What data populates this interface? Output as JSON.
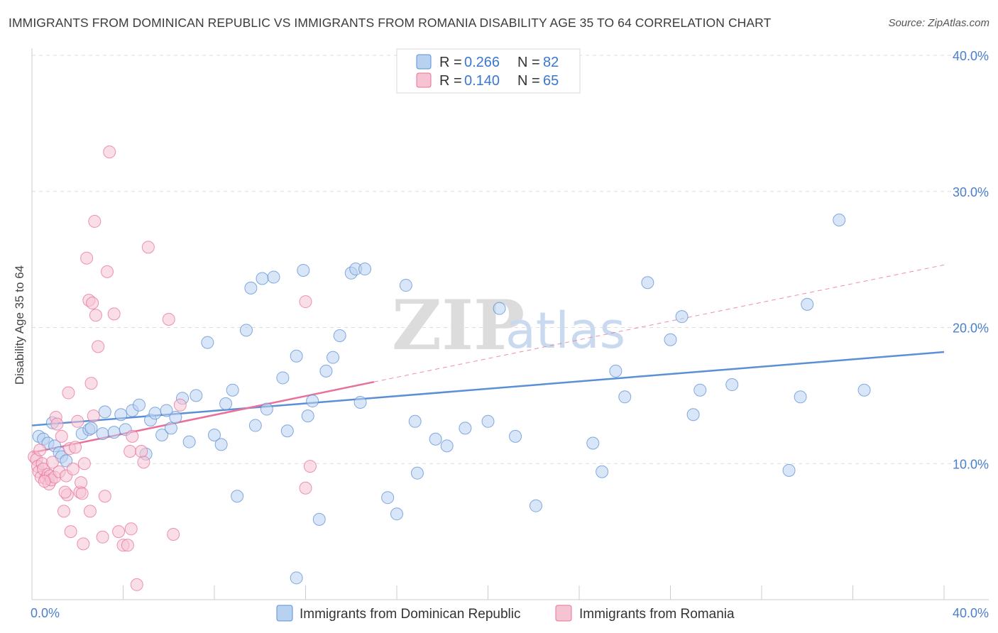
{
  "title": "IMMIGRANTS FROM DOMINICAN REPUBLIC VS IMMIGRANTS FROM ROMANIA DISABILITY AGE 35 TO 64 CORRELATION CHART",
  "source": "Source: ZipAtlas.com",
  "watermark": {
    "zip": "ZIP",
    "atlas": "atlas"
  },
  "colors": {
    "blue": "#5b8fd6",
    "blue_fill": "#b9d1f1",
    "pink": "#e8709a",
    "pink_fill": "#f6c3d3",
    "grid": "#dddddd",
    "tick_label": "#4a7fd0"
  },
  "legend": {
    "rows": [
      {
        "r_label": "R = ",
        "r_value": "0.266",
        "n_label": "N = ",
        "n_value": "82"
      },
      {
        "r_label": "R = ",
        "r_value": "0.140",
        "n_label": "N = ",
        "n_value": "65"
      }
    ]
  },
  "chart_data": {
    "type": "scatter",
    "ylabel": "Disability Age 35 to 64",
    "xlim": [
      0,
      40
    ],
    "ylim": [
      0,
      40
    ],
    "x_tick_labels": [
      "0.0%",
      "40.0%"
    ],
    "y_ticks": [
      10,
      20,
      30,
      40
    ],
    "y_tick_labels": [
      "10.0%",
      "20.0%",
      "30.0%",
      "40.0%"
    ],
    "grid": "horizontal dashed",
    "legend_position": "bottom",
    "series": [
      {
        "name": "Immigrants from Dominican Republic",
        "color": "#5b8fd6",
        "trend": {
          "x1": 0,
          "y1": 12.8,
          "x2": 40,
          "y2": 18.2
        },
        "points": [
          [
            0.3,
            12.0
          ],
          [
            0.5,
            11.8
          ],
          [
            0.7,
            11.5
          ],
          [
            0.9,
            13.0
          ],
          [
            1.0,
            11.3
          ],
          [
            1.2,
            10.8
          ],
          [
            1.3,
            10.5
          ],
          [
            1.5,
            10.2
          ],
          [
            2.2,
            12.2
          ],
          [
            2.5,
            12.5
          ],
          [
            2.6,
            12.6
          ],
          [
            3.1,
            12.2
          ],
          [
            3.2,
            13.8
          ],
          [
            3.6,
            12.3
          ],
          [
            3.9,
            13.6
          ],
          [
            4.1,
            12.5
          ],
          [
            4.4,
            13.9
          ],
          [
            4.7,
            14.3
          ],
          [
            5.0,
            10.7
          ],
          [
            5.2,
            13.2
          ],
          [
            5.4,
            13.7
          ],
          [
            5.7,
            12.1
          ],
          [
            5.9,
            13.9
          ],
          [
            6.1,
            12.6
          ],
          [
            6.3,
            13.4
          ],
          [
            6.6,
            14.8
          ],
          [
            6.9,
            11.6
          ],
          [
            7.2,
            15.0
          ],
          [
            7.7,
            18.9
          ],
          [
            8.0,
            12.1
          ],
          [
            8.3,
            11.4
          ],
          [
            8.5,
            14.4
          ],
          [
            8.8,
            15.4
          ],
          [
            9.0,
            7.6
          ],
          [
            9.4,
            19.8
          ],
          [
            9.6,
            22.9
          ],
          [
            9.8,
            12.8
          ],
          [
            10.1,
            23.6
          ],
          [
            10.3,
            14.0
          ],
          [
            10.6,
            23.7
          ],
          [
            11.0,
            16.3
          ],
          [
            11.2,
            12.4
          ],
          [
            11.6,
            17.9
          ],
          [
            11.9,
            24.2
          ],
          [
            12.1,
            13.5
          ],
          [
            12.3,
            14.6
          ],
          [
            12.6,
            5.9
          ],
          [
            12.9,
            16.8
          ],
          [
            13.2,
            17.8
          ],
          [
            13.5,
            19.4
          ],
          [
            14.0,
            24.0
          ],
          [
            14.2,
            24.3
          ],
          [
            14.4,
            14.5
          ],
          [
            14.6,
            24.3
          ],
          [
            15.6,
            7.5
          ],
          [
            16.0,
            6.3
          ],
          [
            16.4,
            23.1
          ],
          [
            16.8,
            13.1
          ],
          [
            16.9,
            9.3
          ],
          [
            17.7,
            11.8
          ],
          [
            18.2,
            11.3
          ],
          [
            19.0,
            12.6
          ],
          [
            20.0,
            13.1
          ],
          [
            20.5,
            21.4
          ],
          [
            21.2,
            12.0
          ],
          [
            22.1,
            6.9
          ],
          [
            24.6,
            11.5
          ],
          [
            25.0,
            9.4
          ],
          [
            25.6,
            16.8
          ],
          [
            26.0,
            14.9
          ],
          [
            27.0,
            23.3
          ],
          [
            28.0,
            19.1
          ],
          [
            28.5,
            20.8
          ],
          [
            29.0,
            13.6
          ],
          [
            29.3,
            15.4
          ],
          [
            30.7,
            15.8
          ],
          [
            33.2,
            9.5
          ],
          [
            33.7,
            14.9
          ],
          [
            34.0,
            21.7
          ],
          [
            35.4,
            27.9
          ],
          [
            36.5,
            15.4
          ],
          [
            11.6,
            1.6
          ]
        ]
      },
      {
        "name": "Immigrants from Romania",
        "color": "#e8709a",
        "trend": {
          "x1": 0,
          "y1": 10.8,
          "x2": 15,
          "y2": 16.0
        },
        "trend_dashed": {
          "x1": 15,
          "y1": 16.0,
          "x2": 40,
          "y2": 24.6
        },
        "points": [
          [
            0.1,
            10.5
          ],
          [
            0.2,
            10.3
          ],
          [
            0.25,
            9.8
          ],
          [
            0.3,
            9.4
          ],
          [
            0.35,
            11.0
          ],
          [
            0.4,
            9.0
          ],
          [
            0.45,
            10.0
          ],
          [
            0.5,
            9.6
          ],
          [
            0.6,
            8.9
          ],
          [
            0.7,
            9.2
          ],
          [
            0.75,
            8.5
          ],
          [
            0.8,
            9.1
          ],
          [
            0.85,
            8.8
          ],
          [
            0.9,
            10.1
          ],
          [
            1.0,
            9.0
          ],
          [
            1.05,
            13.4
          ],
          [
            1.1,
            12.9
          ],
          [
            1.2,
            9.4
          ],
          [
            1.3,
            12.0
          ],
          [
            1.4,
            6.5
          ],
          [
            1.5,
            9.1
          ],
          [
            1.55,
            7.7
          ],
          [
            1.6,
            15.2
          ],
          [
            1.65,
            11.1
          ],
          [
            1.7,
            5.0
          ],
          [
            1.8,
            9.6
          ],
          [
            1.9,
            11.2
          ],
          [
            2.0,
            13.1
          ],
          [
            2.1,
            7.9
          ],
          [
            2.15,
            8.6
          ],
          [
            2.2,
            7.8
          ],
          [
            2.25,
            4.1
          ],
          [
            2.3,
            10.0
          ],
          [
            2.4,
            25.1
          ],
          [
            2.5,
            22.0
          ],
          [
            2.55,
            6.5
          ],
          [
            2.6,
            15.9
          ],
          [
            2.65,
            21.8
          ],
          [
            2.7,
            13.5
          ],
          [
            2.75,
            27.8
          ],
          [
            2.8,
            20.9
          ],
          [
            2.9,
            18.6
          ],
          [
            3.1,
            4.6
          ],
          [
            3.2,
            7.6
          ],
          [
            3.3,
            24.1
          ],
          [
            3.4,
            32.9
          ],
          [
            3.6,
            21.0
          ],
          [
            3.8,
            5.0
          ],
          [
            4.0,
            4.0
          ],
          [
            4.2,
            4.0
          ],
          [
            4.3,
            10.9
          ],
          [
            4.35,
            5.2
          ],
          [
            4.4,
            12.0
          ],
          [
            4.6,
            1.1
          ],
          [
            4.8,
            10.9
          ],
          [
            4.9,
            10.1
          ],
          [
            5.1,
            25.9
          ],
          [
            6.0,
            20.6
          ],
          [
            6.2,
            4.8
          ],
          [
            6.5,
            14.3
          ],
          [
            12.0,
            21.9
          ],
          [
            12.2,
            9.8
          ],
          [
            12.0,
            8.2
          ],
          [
            1.45,
            7.9
          ],
          [
            0.55,
            8.7
          ]
        ]
      }
    ]
  }
}
